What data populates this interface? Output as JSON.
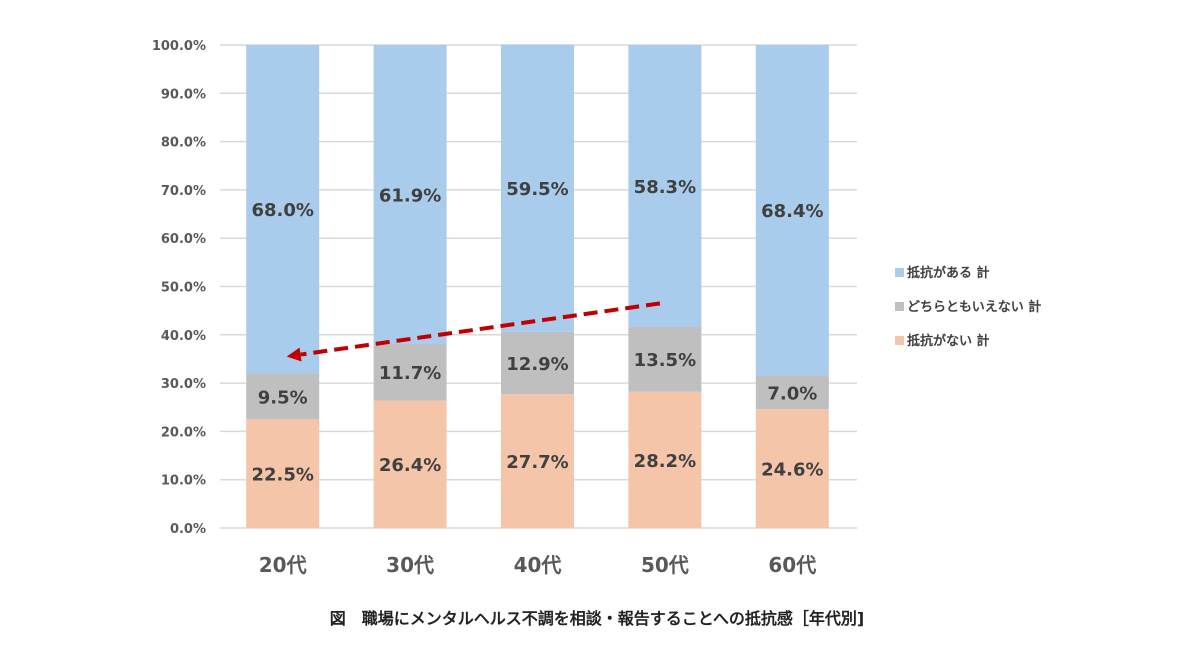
{
  "chart_data": {
    "type": "bar",
    "stacked": true,
    "title": "図　職場にメンタルヘルス不調を相談・報告することへの抵抗感［年代別]",
    "categories": [
      "20代",
      "30代",
      "40代",
      "50代",
      "60代"
    ],
    "series": [
      {
        "name": "抵抗がない 計",
        "color": "#f5c5a9",
        "values": [
          22.5,
          26.4,
          27.7,
          28.2,
          24.6
        ],
        "labels": [
          "22.5%",
          "26.4%",
          "27.7%",
          "28.2%",
          "24.6%"
        ]
      },
      {
        "name": "どちらともいえない 計",
        "color": "#bfbfbf",
        "values": [
          9.5,
          11.7,
          12.9,
          13.5,
          7.0
        ],
        "labels": [
          "9.5%",
          "11.7%",
          "12.9%",
          "13.5%",
          "7.0%"
        ]
      },
      {
        "name": "抵抗がある 計",
        "color": "#a9cbec",
        "values": [
          68.0,
          61.9,
          59.5,
          58.3,
          68.4
        ],
        "labels": [
          "68.0%",
          "61.9%",
          "59.5%",
          "58.3%",
          "68.4%"
        ]
      }
    ],
    "legend_order": [
      "抵抗がある 計",
      "どちらともいえない 計",
      "抵抗がない 計"
    ],
    "ylim": [
      0,
      100
    ],
    "yticks": [
      "0.0%",
      "10.0%",
      "20.0%",
      "30.0%",
      "40.0%",
      "50.0%",
      "60.0%",
      "70.0%",
      "80.0%",
      "90.0%",
      "100.0%"
    ],
    "grid": true,
    "legend_position": "right",
    "annotation": {
      "type": "dashed-arrow",
      "color": "#c00000",
      "from": {
        "category": "50代",
        "y": 46.5
      },
      "to": {
        "category": "20代",
        "y": 35.5
      }
    }
  }
}
